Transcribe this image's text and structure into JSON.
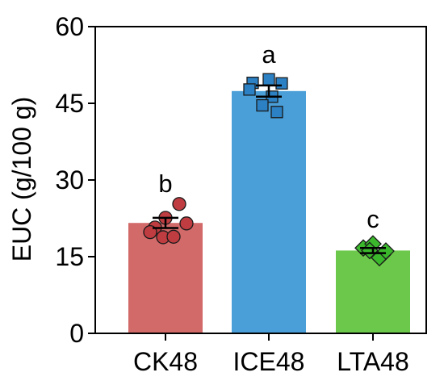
{
  "chart_data": {
    "type": "bar",
    "title": "",
    "xlabel": "",
    "ylabel": "EUC (g/100 g)",
    "ylim": [
      0,
      60
    ],
    "yticks": [
      "0",
      "15",
      "30",
      "45",
      "60"
    ],
    "grid": false,
    "legend": "none",
    "categories": [
      "CK48",
      "ICE48",
      "LTA48"
    ],
    "values": [
      21.6,
      47.4,
      16.2
    ],
    "errors": [
      1.0,
      1.1,
      0.5
    ],
    "significance": [
      "b",
      "a",
      "c"
    ],
    "points": [
      [
        22.6,
        25.3,
        20.7,
        19.8,
        18.8,
        18.9,
        21.5
      ],
      [
        49.0,
        49.7,
        48.9,
        47.7,
        46.3,
        44.6,
        43.3
      ],
      [
        16.7,
        17.5,
        15.4,
        16.2,
        14.8,
        16.1
      ]
    ],
    "marker_shapes": [
      "circle",
      "square",
      "diamond"
    ],
    "colors": {
      "bar_fills": [
        "#d36a6a",
        "#4a9fd8",
        "#6cc84a"
      ],
      "marker_fills": [
        "#bf3c40",
        "#2b81c3",
        "#3bb72c"
      ],
      "marker_stroke": "#1a1a1a",
      "axis": "#000000"
    }
  }
}
